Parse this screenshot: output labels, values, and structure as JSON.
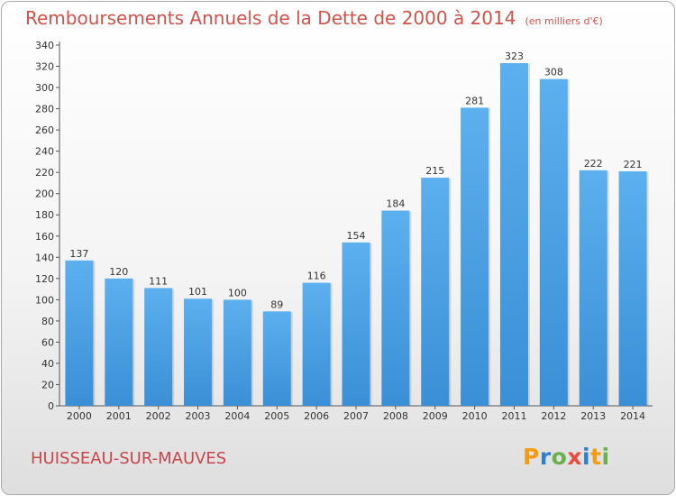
{
  "header": {
    "title": "Remboursements Annuels de la Dette de 2000 à 2014",
    "unit": "(en milliers d'€)"
  },
  "footer": {
    "commune": "HUISSEAU-SUR-MAUVES",
    "logo_letters": [
      "P",
      "r",
      "o",
      "x",
      "i",
      "t",
      "i"
    ],
    "logo_colors": [
      "#f39c12",
      "#2f80c8",
      "#6ab04c",
      "#e74c3c",
      "#2f80c8",
      "#f39c12",
      "#6ab04c"
    ]
  },
  "chart_data": {
    "type": "bar",
    "categories": [
      "2000",
      "2001",
      "2002",
      "2003",
      "2004",
      "2005",
      "2006",
      "2007",
      "2008",
      "2009",
      "2010",
      "2011",
      "2012",
      "2013",
      "2014"
    ],
    "values": [
      137,
      120,
      111,
      101,
      100,
      89,
      116,
      154,
      184,
      215,
      281,
      323,
      308,
      222,
      221
    ],
    "ylim": [
      0,
      340
    ],
    "ytick_step": 20,
    "grid": false,
    "bar_color": "#3a8fd6",
    "bar_color_light": "#5cb0ee"
  }
}
